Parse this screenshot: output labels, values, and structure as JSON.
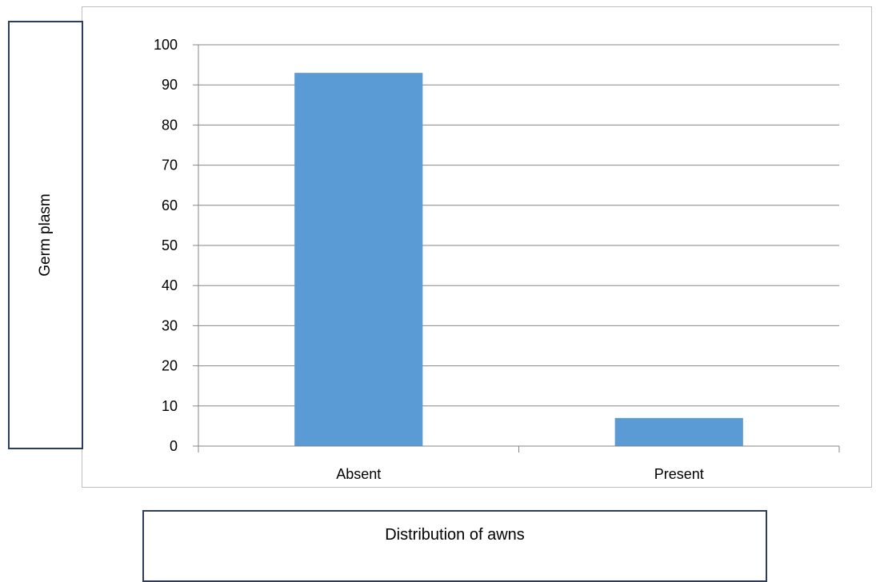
{
  "chart_data": {
    "type": "bar",
    "title": "",
    "xlabel": "Distribution of awns",
    "ylabel": "Germ plasm",
    "categories": [
      "Absent",
      "Present"
    ],
    "values": [
      93,
      7
    ],
    "ylim": [
      0,
      100
    ],
    "yticks": [
      0,
      10,
      20,
      30,
      40,
      50,
      60,
      70,
      80,
      90,
      100
    ],
    "grid": true,
    "legend": "none",
    "bar_color": "#5b9bd5",
    "grid_color": "#868686"
  }
}
